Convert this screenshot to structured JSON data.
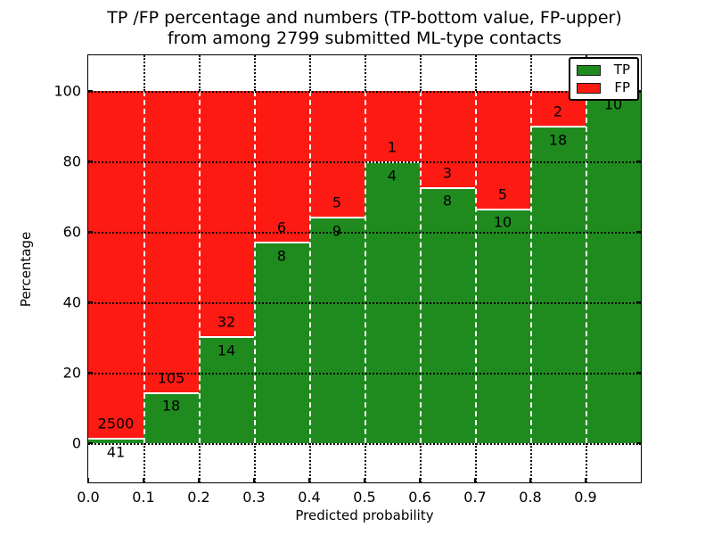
{
  "figure": {
    "title_line1": "TP /FP percentage and numbers (TP-bottom value, FP-upper)",
    "title_line2": "from among 2799 submitted ML-type contacts",
    "xlabel": "Predicted probability",
    "ylabel": "Percentage"
  },
  "legend": {
    "position": "upper right",
    "items": [
      {
        "label": "TP",
        "color": "#1f8b1f"
      },
      {
        "label": "FP",
        "color": "#fd1a13"
      }
    ]
  },
  "chart_data": {
    "type": "bar",
    "subtype": "stacked-percentage-histogram",
    "title": "TP /FP percentage and numbers (TP-bottom value, FP-upper)\nfrom among 2799 submitted ML-type contacts",
    "xlabel": "Predicted probability",
    "ylabel": "Percentage",
    "total_contacts": 2799,
    "bin_edges": [
      0.0,
      0.1,
      0.2,
      0.3,
      0.4,
      0.5,
      0.6,
      0.7,
      0.8,
      0.9,
      1.0
    ],
    "x_tick_labels": [
      "0.0",
      "0.1",
      "0.2",
      "0.3",
      "0.4",
      "0.5",
      "0.6",
      "0.7",
      "0.8",
      "0.9"
    ],
    "y_ticks": [
      0,
      20,
      40,
      60,
      80,
      100
    ],
    "xlim": [
      0.0,
      1.0
    ],
    "ylim": [
      -11,
      110
    ],
    "grid": true,
    "legend_position": "upper right",
    "series": [
      {
        "name": "TP",
        "color": "#1f8b1f",
        "counts": [
          41,
          18,
          14,
          8,
          9,
          4,
          8,
          10,
          18,
          10
        ]
      },
      {
        "name": "FP",
        "color": "#fd1a13",
        "counts": [
          2500,
          105,
          32,
          6,
          5,
          1,
          3,
          5,
          2,
          0
        ]
      }
    ],
    "tp_percent_of_bin": [
      1.6,
      14.6,
      30.4,
      57.1,
      64.3,
      80.0,
      72.7,
      66.7,
      90.0,
      100.0
    ]
  }
}
